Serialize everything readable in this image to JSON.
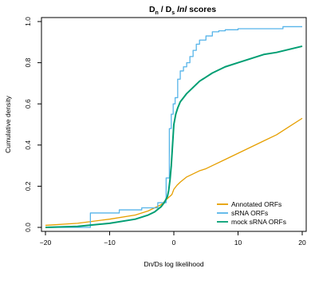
{
  "chart_data": {
    "type": "line",
    "title": {
      "part1": "D",
      "part1_sub": "n",
      "slash": " / ",
      "part2": "D",
      "part2_sub": "s",
      "suffix_italic": "lnl",
      "suffix": " scores"
    },
    "xlabel": "Dn/Ds log likelihood",
    "ylabel": "Cumulative density",
    "xlim": [
      -20,
      20
    ],
    "ylim": [
      0,
      1
    ],
    "x_ticks": [
      -20,
      -10,
      0,
      10,
      20
    ],
    "x_tick_labels": [
      "−20",
      "−10",
      "0",
      "10",
      "20"
    ],
    "y_ticks": [
      0.0,
      0.2,
      0.4,
      0.6,
      0.8,
      1.0
    ],
    "y_tick_labels": [
      "0.0",
      "0.2",
      "0.4",
      "0.6",
      "0.8",
      "1.0"
    ],
    "grid": false,
    "legend_position": "bottom-right",
    "series": [
      {
        "name": "Annotated ORFs",
        "color": "#e69f00",
        "x": [
          -20,
          -15,
          -10,
          -6,
          -4,
          -2,
          -1,
          -0.3,
          0,
          0.5,
          1,
          2,
          3,
          4,
          5,
          6,
          8,
          10,
          12,
          14,
          16,
          18,
          20
        ],
        "y": [
          0.01,
          0.02,
          0.04,
          0.06,
          0.08,
          0.11,
          0.14,
          0.16,
          0.185,
          0.205,
          0.22,
          0.245,
          0.26,
          0.275,
          0.285,
          0.3,
          0.33,
          0.36,
          0.39,
          0.42,
          0.45,
          0.49,
          0.53
        ]
      },
      {
        "name": "sRNA ORFs",
        "color": "#56b4e9",
        "step": true,
        "x": [
          -20,
          -13,
          -8.5,
          -5,
          -2.5,
          -1.2,
          -0.7,
          -0.4,
          -0.1,
          0.2,
          0.6,
          1.0,
          1.5,
          2.0,
          2.5,
          3.0,
          3.5,
          4.0,
          5.0,
          6.0,
          7.0,
          8.0,
          9.0,
          10.0,
          17.0,
          20
        ],
        "y": [
          0.0,
          0.07,
          0.085,
          0.095,
          0.12,
          0.24,
          0.48,
          0.55,
          0.6,
          0.63,
          0.72,
          0.76,
          0.78,
          0.8,
          0.83,
          0.86,
          0.89,
          0.91,
          0.93,
          0.95,
          0.955,
          0.96,
          0.96,
          0.965,
          0.975,
          0.975
        ]
      },
      {
        "name": "mock sRNA ORFs",
        "color": "#009e73",
        "x": [
          -20,
          -15,
          -10,
          -6,
          -4,
          -3,
          -2,
          -1.5,
          -1,
          -0.8,
          -0.6,
          -0.4,
          -0.2,
          0,
          0.3,
          0.6,
          1,
          1.5,
          2,
          3,
          4,
          5,
          6,
          8,
          10,
          12,
          14,
          16,
          18,
          20
        ],
        "y": [
          0.0,
          0.005,
          0.02,
          0.04,
          0.06,
          0.075,
          0.1,
          0.12,
          0.15,
          0.18,
          0.23,
          0.3,
          0.4,
          0.5,
          0.55,
          0.58,
          0.61,
          0.63,
          0.65,
          0.68,
          0.71,
          0.73,
          0.75,
          0.78,
          0.8,
          0.82,
          0.84,
          0.85,
          0.865,
          0.88
        ]
      }
    ]
  }
}
